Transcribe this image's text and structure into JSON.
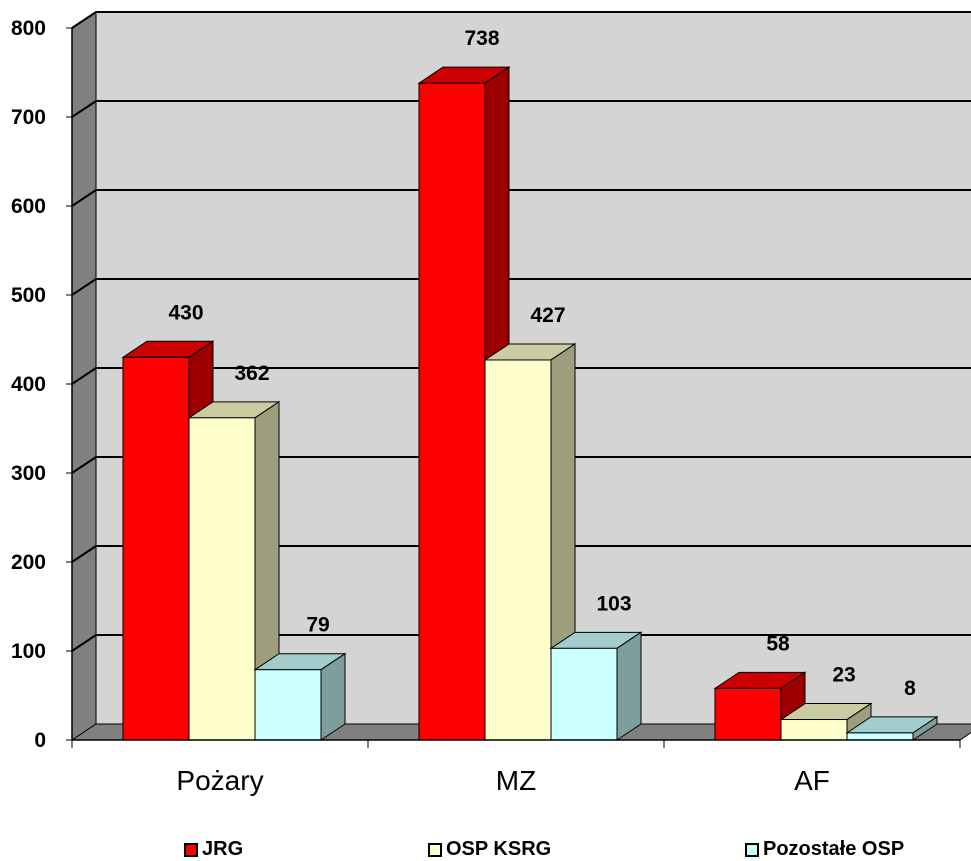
{
  "chart_data": {
    "type": "bar",
    "style": "3d-clustered-column",
    "categories": [
      "Pożary",
      "MZ",
      "AF"
    ],
    "series": [
      {
        "name": "JRG",
        "values": [
          430,
          738,
          58
        ],
        "color": "#ff0000"
      },
      {
        "name": "OSP KSRG",
        "values": [
          362,
          427,
          23
        ],
        "color": "#ffffcc"
      },
      {
        "name": "Pozostałe OSP",
        "values": [
          79,
          103,
          8
        ],
        "color": "#ccffff"
      }
    ],
    "data_labels": [
      [
        "430",
        "362",
        "79"
      ],
      [
        "738",
        "427",
        "103"
      ],
      [
        "58",
        "23",
        "8"
      ]
    ],
    "yticks": [
      "0",
      "100",
      "200",
      "300",
      "400",
      "500",
      "600",
      "700",
      "800"
    ],
    "ylim": [
      0,
      800
    ],
    "grid": true,
    "legend_position": "bottom",
    "wall_color": "#d4d4d4",
    "side_wall_color": "#808080"
  }
}
